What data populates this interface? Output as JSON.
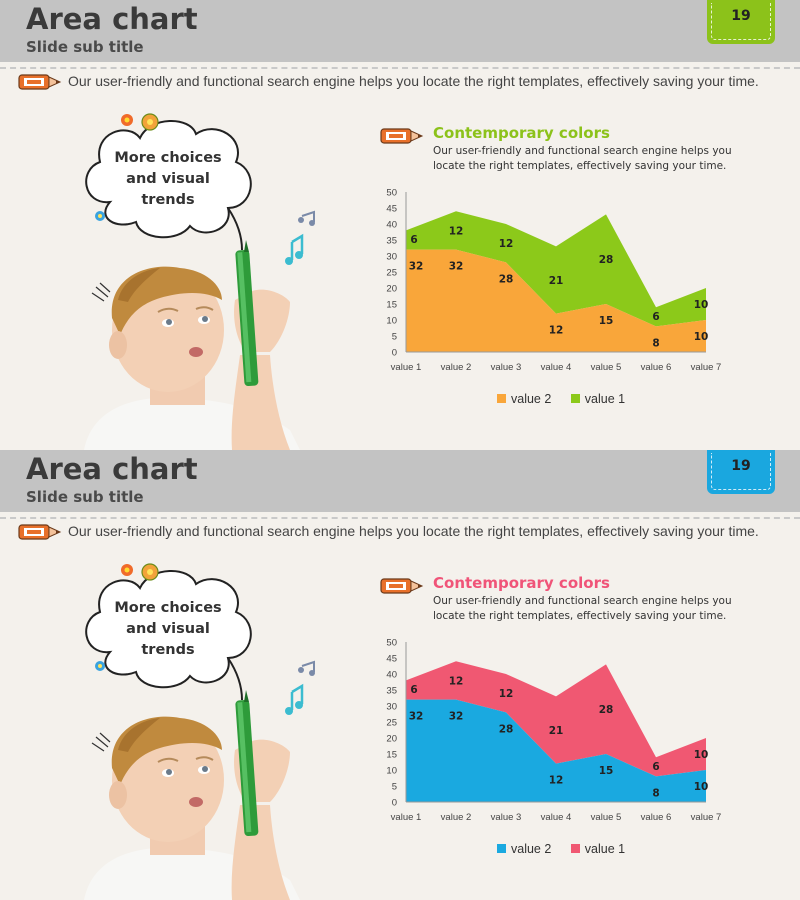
{
  "slides": [
    {
      "title": "Area chart",
      "subtitle": "Slide sub title",
      "page_number": "19",
      "tab_color": "#8cc21a",
      "description": "Our user-friendly and functional search engine helps you locate the right templates, effectively saving your time.",
      "bubble_line1": "More choices",
      "bubble_line2": "and visual",
      "bubble_line3": "trends",
      "chart_title": "Contemporary colors",
      "chart_title_color": "#8cc21a",
      "chart_desc": "Our user-friendly and functional search engine helps you locate the right templates, effectively saving your time.",
      "colors": {
        "value2": "#f9a63a",
        "value1": "#8cc91a"
      },
      "chart_data": {
        "type": "area",
        "stacked": true,
        "categories": [
          "value 1",
          "value 2",
          "value 3",
          "value 4",
          "value 5",
          "value 6",
          "value 7"
        ],
        "series": [
          {
            "name": "value 2",
            "values": [
              32,
              32,
              28,
              12,
              15,
              8,
              10
            ]
          },
          {
            "name": "value 1",
            "values": [
              6,
              12,
              12,
              21,
              28,
              6,
              10
            ]
          }
        ],
        "ylim": [
          0,
          50
        ],
        "yticks": [
          "0",
          "5",
          "10",
          "15",
          "20",
          "25",
          "30",
          "35",
          "40",
          "45",
          "50"
        ],
        "legend": "bottom"
      }
    },
    {
      "title": "Area chart",
      "subtitle": "Slide sub title",
      "page_number": "19",
      "tab_color": "#1aa7df",
      "description": "Our user-friendly and functional search engine helps you locate the right templates, effectively saving your time.",
      "bubble_line1": "More choices",
      "bubble_line2": "and visual",
      "bubble_line3": "trends",
      "chart_title": "Contemporary colors",
      "chart_title_color": "#f05478",
      "chart_desc": "Our user-friendly and functional search engine helps you locate the right templates, effectively saving your time.",
      "colors": {
        "value2": "#1aa9e0",
        "value1": "#f05872"
      },
      "chart_data": {
        "type": "area",
        "stacked": true,
        "categories": [
          "value 1",
          "value 2",
          "value 3",
          "value 4",
          "value 5",
          "value 6",
          "value 7"
        ],
        "series": [
          {
            "name": "value 2",
            "values": [
              32,
              32,
              28,
              12,
              15,
              8,
              10
            ]
          },
          {
            "name": "value 1",
            "values": [
              6,
              12,
              12,
              21,
              28,
              6,
              10
            ]
          }
        ],
        "ylim": [
          0,
          50
        ],
        "yticks": [
          "0",
          "5",
          "10",
          "15",
          "20",
          "25",
          "30",
          "35",
          "40",
          "45",
          "50"
        ],
        "legend": "bottom"
      }
    }
  ]
}
